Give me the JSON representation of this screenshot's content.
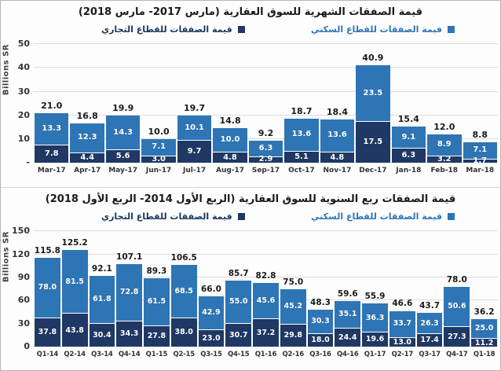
{
  "legend": {
    "commercial": {
      "label": "قيمة الصفقات للقطاع التجاري",
      "color": "#1f3864"
    },
    "residential": {
      "label": "قيمة الصفقات للقطاع السكني",
      "color": "#2e75b6"
    }
  },
  "chart_data": [
    {
      "type": "bar",
      "stacked": true,
      "title": "قيمة الصفقات الشهرية للسوق العقارية (مارس 2017- مارس 2018)",
      "ylabel": "Billions SR",
      "ylim": [
        0,
        50
      ],
      "grid": true,
      "legend_position": "top",
      "yticks": [
        {
          "label": "50",
          "value": 50
        },
        {
          "label": "40",
          "value": 40
        },
        {
          "label": "30",
          "value": 30
        },
        {
          "label": "20",
          "value": 20
        },
        {
          "label": "10",
          "value": 10
        },
        {
          "label": "-",
          "value": 0
        }
      ],
      "categories": [
        "Mar-17",
        "Apr-17",
        "May-17",
        "Jun-17",
        "Jul-17",
        "Aug-17",
        "Sep-17",
        "Oct-17",
        "Nov-17",
        "Dec-17",
        "Jan-18",
        "Feb-18",
        "Mar-18"
      ],
      "series": [
        {
          "name": "قيمة الصفقات للقطاع التجاري",
          "color": "#1f3864",
          "values": [
            7.8,
            4.4,
            5.6,
            3.0,
            9.7,
            4.8,
            2.9,
            5.1,
            4.8,
            17.5,
            6.3,
            3.2,
            1.7
          ]
        },
        {
          "name": "قيمة الصفقات للقطاع السكني",
          "color": "#2e75b6",
          "values": [
            13.3,
            12.3,
            14.3,
            7.1,
            10.1,
            10.0,
            6.3,
            13.6,
            13.6,
            23.5,
            9.1,
            8.9,
            7.1
          ]
        }
      ],
      "totals": [
        21.0,
        16.8,
        19.9,
        10.0,
        19.7,
        14.8,
        9.2,
        18.7,
        18.4,
        40.9,
        15.4,
        12.0,
        8.8
      ]
    },
    {
      "type": "bar",
      "stacked": true,
      "title": "قيمة الصفقات ربع السنوية للسوق العقارية (الربع الأول 2014- الربع الأول 2018)",
      "ylabel": "Billions SR",
      "ylim": [
        0,
        150
      ],
      "grid": true,
      "legend_position": "top",
      "yticks": [
        {
          "label": "150",
          "value": 150
        },
        {
          "label": "120",
          "value": 120
        },
        {
          "label": "90",
          "value": 90
        },
        {
          "label": "60",
          "value": 60
        },
        {
          "label": "30",
          "value": 30
        },
        {
          "label": "0",
          "value": 0
        }
      ],
      "categories": [
        "Q1-14",
        "Q2-14",
        "Q3-14",
        "Q4-14",
        "Q1-15",
        "Q2-15",
        "Q3-15",
        "Q4-15",
        "Q1-16",
        "Q2-16",
        "Q3-16",
        "Q4-16",
        "Q1-17",
        "Q2-17",
        "Q3-17",
        "Q4-17",
        "Q1-18"
      ],
      "series": [
        {
          "name": "قيمة الصفقات للقطاع التجاري",
          "color": "#1f3864",
          "values": [
            37.8,
            43.8,
            30.4,
            34.3,
            27.8,
            38.0,
            23.0,
            30.7,
            37.2,
            29.8,
            18.0,
            24.4,
            19.6,
            13.0,
            17.4,
            27.3,
            11.2
          ]
        },
        {
          "name": "قيمة الصفقات للقطاع السكني",
          "color": "#2e75b6",
          "values": [
            78.0,
            81.5,
            61.8,
            72.8,
            61.5,
            68.5,
            42.9,
            55.0,
            45.6,
            45.2,
            30.3,
            35.1,
            36.3,
            33.7,
            26.3,
            50.6,
            25.0
          ]
        }
      ],
      "totals": [
        115.8,
        125.2,
        92.1,
        107.1,
        89.3,
        106.5,
        66.0,
        85.7,
        82.8,
        75.0,
        48.3,
        59.6,
        55.9,
        46.6,
        43.7,
        78.0,
        36.2
      ]
    }
  ]
}
